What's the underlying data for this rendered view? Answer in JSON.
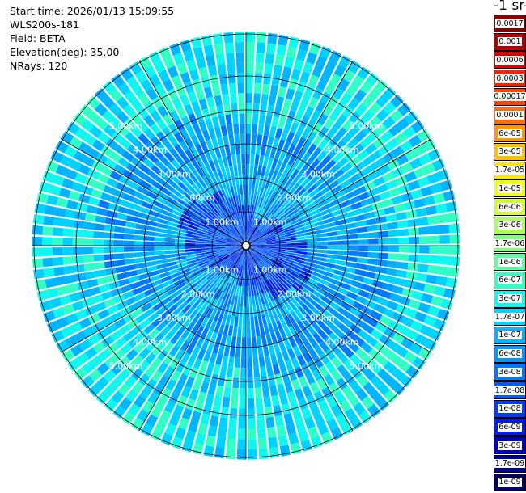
{
  "header": {
    "start_time": "Start time: 2026/01/13 15:09:55",
    "instrument": "WLS200s-181",
    "field": "Field: BETA",
    "elevation": "Elevation(deg): 35.00",
    "nrays": "NRays: 120"
  },
  "colorbar": {
    "title": "-1 sr-",
    "levels": [
      {
        "label": "0.0017",
        "color": "#8b0000"
      },
      {
        "label": "0.001",
        "color": "#b40000"
      },
      {
        "label": "0.0006",
        "color": "#dc0000"
      },
      {
        "label": "0.0003",
        "color": "#ff1e00"
      },
      {
        "label": "0.00017",
        "color": "#ff4600"
      },
      {
        "label": "0.0001",
        "color": "#ff6e00"
      },
      {
        "label": "6e-05",
        "color": "#ff9600"
      },
      {
        "label": "3e-05",
        "color": "#ffbe00"
      },
      {
        "label": "1.7e-05",
        "color": "#ffe600"
      },
      {
        "label": "1e-05",
        "color": "#f0ff10"
      },
      {
        "label": "6e-06",
        "color": "#d2ff2c"
      },
      {
        "label": "3e-06",
        "color": "#aaff50"
      },
      {
        "label": "1.7e-06",
        "color": "#82ff78"
      },
      {
        "label": "1e-06",
        "color": "#5affa0"
      },
      {
        "label": "6e-07",
        "color": "#32ffc8"
      },
      {
        "label": "3e-07",
        "color": "#10f5ee"
      },
      {
        "label": "1.7e-07",
        "color": "#00d2ff"
      },
      {
        "label": "1e-07",
        "color": "#00b4ff"
      },
      {
        "label": "6e-08",
        "color": "#0096ff"
      },
      {
        "label": "3e-08",
        "color": "#0078ff"
      },
      {
        "label": "1.7e-08",
        "color": "#005aff"
      },
      {
        "label": "1e-08",
        "color": "#003cff"
      },
      {
        "label": "6e-09",
        "color": "#001ee6"
      },
      {
        "label": "3e-09",
        "color": "#0000c8"
      },
      {
        "label": "1.7e-09",
        "color": "#00009b"
      },
      {
        "label": "1e-09",
        "color": "#000064"
      }
    ]
  },
  "chart_data": {
    "type": "heatmap",
    "projection": "polar",
    "field": "BETA",
    "elevation_deg": 35.0,
    "nrays": 120,
    "range_rings_km": [
      1,
      2,
      3,
      4,
      5
    ],
    "ring_labels": [
      "1.00km",
      "2.00km",
      "3.00km",
      "4.00km",
      "5.00km"
    ],
    "max_range_km": 6.3,
    "spokes_deg": [
      0,
      30,
      60,
      90,
      120,
      150,
      180,
      210,
      240,
      270,
      300,
      330
    ],
    "inner_range_km": 1.5,
    "outer_range_km": 4.0,
    "value_levels": {
      "near": [
        "1e-08",
        "6e-09",
        "1.7e-08",
        "3e-08"
      ],
      "mid": [
        "6e-08",
        "1.7e-07",
        "3e-08",
        "1e-07"
      ],
      "far": [
        "3e-07",
        "1.7e-07",
        "1e-07",
        "6e-07"
      ]
    }
  }
}
